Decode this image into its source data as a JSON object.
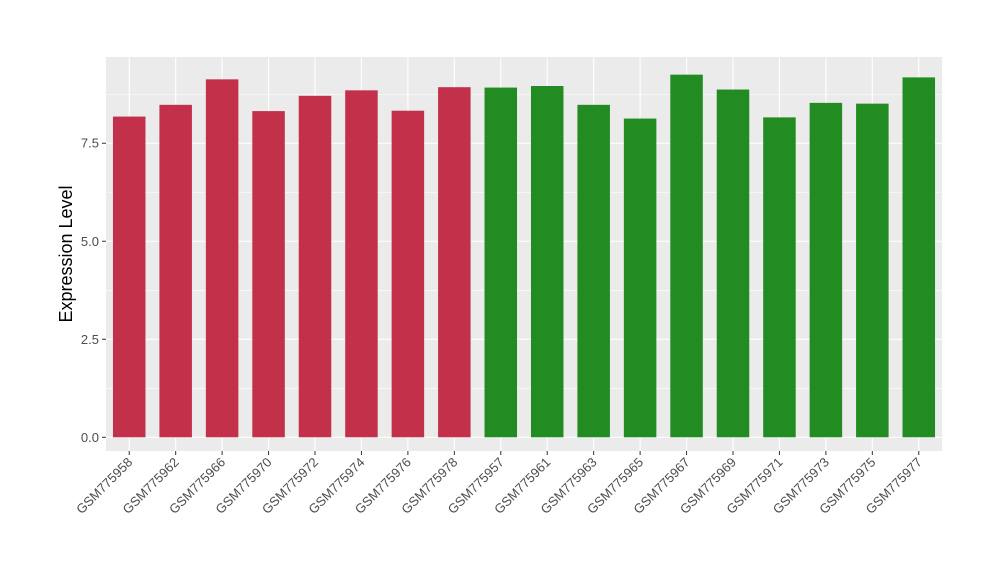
{
  "chart_data": {
    "type": "bar",
    "title": "",
    "xlabel": "",
    "ylabel": "Expression Level",
    "ylim": [
      -0.35,
      9.7
    ],
    "yticks": [
      0.0,
      2.5,
      5.0,
      7.5
    ],
    "ytick_labels": [
      "0.0",
      "2.5",
      "5.0",
      "7.5"
    ],
    "grid": true,
    "legend": "none",
    "categories": [
      "GSM775958",
      "GSM775962",
      "GSM775966",
      "GSM775970",
      "GSM775972",
      "GSM775974",
      "GSM775976",
      "GSM775978",
      "GSM775957",
      "GSM775961",
      "GSM775963",
      "GSM775965",
      "GSM775967",
      "GSM775969",
      "GSM775971",
      "GSM775973",
      "GSM775975",
      "GSM775977"
    ],
    "values": [
      8.18,
      8.48,
      9.13,
      8.32,
      8.71,
      8.85,
      8.33,
      8.93,
      8.92,
      8.96,
      8.48,
      8.13,
      9.25,
      8.87,
      8.16,
      8.53,
      8.51,
      9.18
    ],
    "bar_colors": [
      "#c3304a",
      "#c3304a",
      "#c3304a",
      "#c3304a",
      "#c3304a",
      "#c3304a",
      "#c3304a",
      "#c3304a",
      "#228b22",
      "#228b22",
      "#228b22",
      "#228b22",
      "#228b22",
      "#228b22",
      "#228b22",
      "#228b22",
      "#228b22",
      "#228b22"
    ],
    "panel_background": "#ebebeb",
    "grid_color": "#ffffff"
  }
}
